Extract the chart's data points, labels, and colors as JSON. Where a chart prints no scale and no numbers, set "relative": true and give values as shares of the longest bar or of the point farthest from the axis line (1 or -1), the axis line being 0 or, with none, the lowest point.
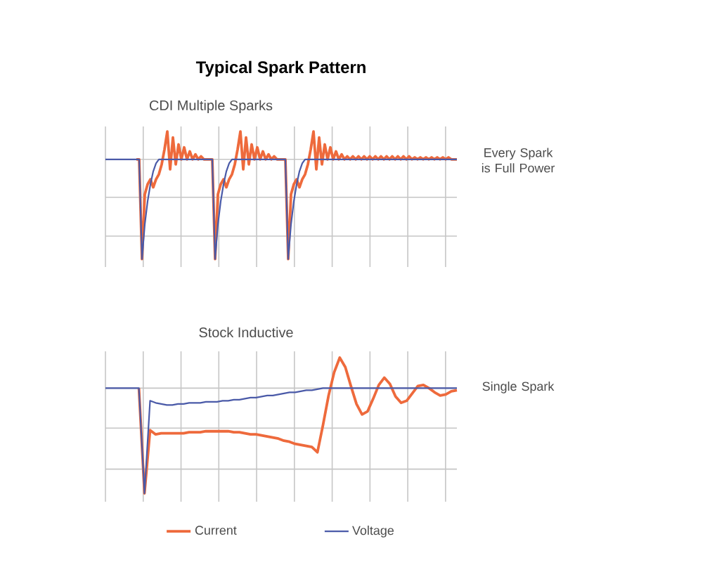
{
  "chart_data": [
    {
      "type": "line",
      "title": "Typical Spark Pattern",
      "subtitle": "CDI Multiple Sparks",
      "relative": true,
      "grid": true,
      "legend": false,
      "categories": [
        null,
        null,
        null,
        null,
        null,
        null,
        null,
        null,
        null,
        null,
        null,
        null,
        null,
        null,
        null,
        null,
        null,
        null,
        null,
        null,
        null,
        null,
        null,
        null,
        null,
        null,
        null,
        null,
        null,
        null,
        null,
        null,
        null,
        null,
        null,
        null,
        null,
        null,
        null,
        null,
        null,
        null,
        null,
        null,
        null,
        null,
        null,
        null,
        null,
        null,
        null,
        null,
        null,
        null,
        null,
        null,
        null,
        null,
        null,
        null,
        null,
        null,
        null,
        null,
        null,
        null,
        null,
        null,
        null,
        null,
        null,
        null,
        null,
        null,
        null,
        null,
        null,
        null,
        null,
        null,
        null,
        null,
        null,
        null,
        null,
        null,
        null,
        null,
        null,
        null,
        null,
        null,
        null,
        null,
        null,
        null,
        null,
        null,
        null,
        null,
        null,
        null,
        null,
        null,
        null,
        null,
        null,
        null,
        null,
        null,
        null,
        null,
        null,
        null,
        null,
        null,
        null,
        null,
        null,
        null,
        null,
        null,
        null,
        null,
        null,
        null
      ],
      "annotations": [
        "Every Spark is Full Power"
      ],
      "series": [
        {
          "color": "#ee6a3c",
          "values": [
            null,
            null,
            null,
            null,
            null,
            null,
            null,
            null,
            null,
            null,
            null,
            0,
            0,
            -1,
            -0.35,
            -0.25,
            -0.2,
            -0.28,
            -0.2,
            -0.15,
            -0.05,
            0.1,
            0.28,
            -0.1,
            0.22,
            -0.05,
            0.15,
            0,
            0.12,
            0,
            0.08,
            0,
            0.05,
            0,
            0.03,
            0,
            0,
            0,
            0,
            -1,
            -0.35,
            -0.25,
            -0.2,
            -0.28,
            -0.2,
            -0.15,
            -0.05,
            0.1,
            0.28,
            -0.1,
            0.22,
            -0.05,
            0.15,
            0,
            0.12,
            0,
            0.08,
            0,
            0.05,
            0,
            0.03,
            0,
            0,
            0,
            0,
            -1,
            -0.35,
            -0.25,
            -0.2,
            -0.28,
            -0.2,
            -0.15,
            -0.05,
            0.1,
            0.28,
            -0.1,
            0.22,
            -0.05,
            0.15,
            0,
            0.12,
            0,
            0.08,
            0,
            0.05,
            0,
            0.03,
            0,
            0.03,
            0,
            0.03,
            0,
            0.03,
            0,
            0.03,
            0,
            0.03,
            0,
            0.03,
            0,
            0.03,
            0,
            0.03,
            0,
            0.03,
            0,
            0.03,
            0,
            0.03,
            0,
            0.02,
            0,
            0.02,
            0,
            0.02,
            0,
            0.02,
            0,
            0.02,
            0,
            0.02,
            0,
            0.02,
            0,
            0,
            0
          ]
        },
        {
          "color": "#4a5aa8",
          "values": [
            0,
            0,
            0,
            0,
            0,
            0,
            0,
            0,
            0,
            0,
            0,
            0,
            0,
            -1,
            -0.65,
            -0.42,
            -0.25,
            -0.12,
            -0.04,
            0,
            0,
            0,
            0,
            0,
            0,
            0,
            0,
            0,
            0,
            0,
            0,
            0,
            0,
            0,
            0,
            0,
            0,
            0,
            0,
            -1,
            -0.65,
            -0.42,
            -0.25,
            -0.12,
            -0.04,
            0,
            0,
            0,
            0,
            0,
            0,
            0,
            0,
            0,
            0,
            0,
            0,
            0,
            0,
            0,
            0,
            0,
            0,
            0,
            0,
            -1,
            -0.65,
            -0.42,
            -0.25,
            -0.12,
            -0.04,
            0,
            0,
            0,
            0,
            0,
            0,
            0,
            0,
            0,
            0,
            0,
            0,
            0,
            0,
            0,
            0,
            0,
            0,
            0,
            0,
            0,
            0,
            0,
            0,
            0,
            0,
            0,
            0,
            0,
            0,
            0,
            0,
            0,
            0,
            0,
            0,
            0,
            0,
            0,
            0,
            0,
            0,
            0,
            0,
            0,
            0,
            0,
            0,
            0,
            0,
            0,
            0,
            0,
            0,
            0
          ]
        }
      ]
    },
    {
      "type": "line",
      "title": "Stock Inductive",
      "relative": true,
      "grid": true,
      "legend": "bottom",
      "categories": [
        null,
        null,
        null,
        null,
        null,
        null,
        null,
        null,
        null,
        null,
        null,
        null,
        null,
        null,
        null,
        null,
        null,
        null,
        null,
        null,
        null,
        null,
        null,
        null,
        null,
        null,
        null,
        null,
        null,
        null,
        null,
        null,
        null,
        null,
        null,
        null,
        null,
        null,
        null,
        null,
        null,
        null,
        null,
        null,
        null,
        null,
        null,
        null,
        null,
        null,
        null,
        null,
        null,
        null,
        null,
        null,
        null,
        null,
        null,
        null,
        null,
        null,
        null,
        null
      ],
      "annotations": [
        "Single Spark"
      ],
      "series": [
        {
          "name": "Current",
          "color": "#ee6a3c",
          "values": [
            null,
            null,
            null,
            null,
            null,
            null,
            0,
            -1,
            -0.4,
            -0.44,
            -0.43,
            -0.43,
            -0.43,
            -0.43,
            -0.43,
            -0.42,
            -0.42,
            -0.42,
            -0.41,
            -0.41,
            -0.41,
            -0.41,
            -0.41,
            -0.42,
            -0.42,
            -0.43,
            -0.44,
            -0.44,
            -0.45,
            -0.46,
            -0.47,
            -0.48,
            -0.5,
            -0.51,
            -0.53,
            -0.54,
            -0.55,
            -0.56,
            -0.61,
            -0.35,
            -0.07,
            0.15,
            0.29,
            0.2,
            0.02,
            -0.15,
            -0.25,
            -0.22,
            -0.1,
            0.03,
            0.1,
            0.04,
            -0.08,
            -0.14,
            -0.12,
            -0.05,
            0.02,
            0.03,
            0,
            -0.04,
            -0.07,
            -0.06,
            -0.03,
            -0.02
          ]
        },
        {
          "name": "Voltage",
          "color": "#4a5aa8",
          "values": [
            0,
            0,
            0,
            0,
            0,
            0,
            0,
            -1,
            -0.12,
            -0.14,
            -0.15,
            -0.16,
            -0.16,
            -0.15,
            -0.15,
            -0.14,
            -0.14,
            -0.14,
            -0.13,
            -0.13,
            -0.13,
            -0.12,
            -0.12,
            -0.11,
            -0.11,
            -0.1,
            -0.09,
            -0.09,
            -0.08,
            -0.07,
            -0.07,
            -0.06,
            -0.05,
            -0.04,
            -0.04,
            -0.03,
            -0.02,
            -0.02,
            -0.01,
            0,
            0,
            0,
            0,
            0,
            0,
            0,
            0,
            0,
            0,
            0,
            0,
            0,
            0,
            0,
            0,
            0,
            0,
            0,
            0,
            0,
            0,
            0,
            0,
            0
          ]
        }
      ]
    }
  ]
}
